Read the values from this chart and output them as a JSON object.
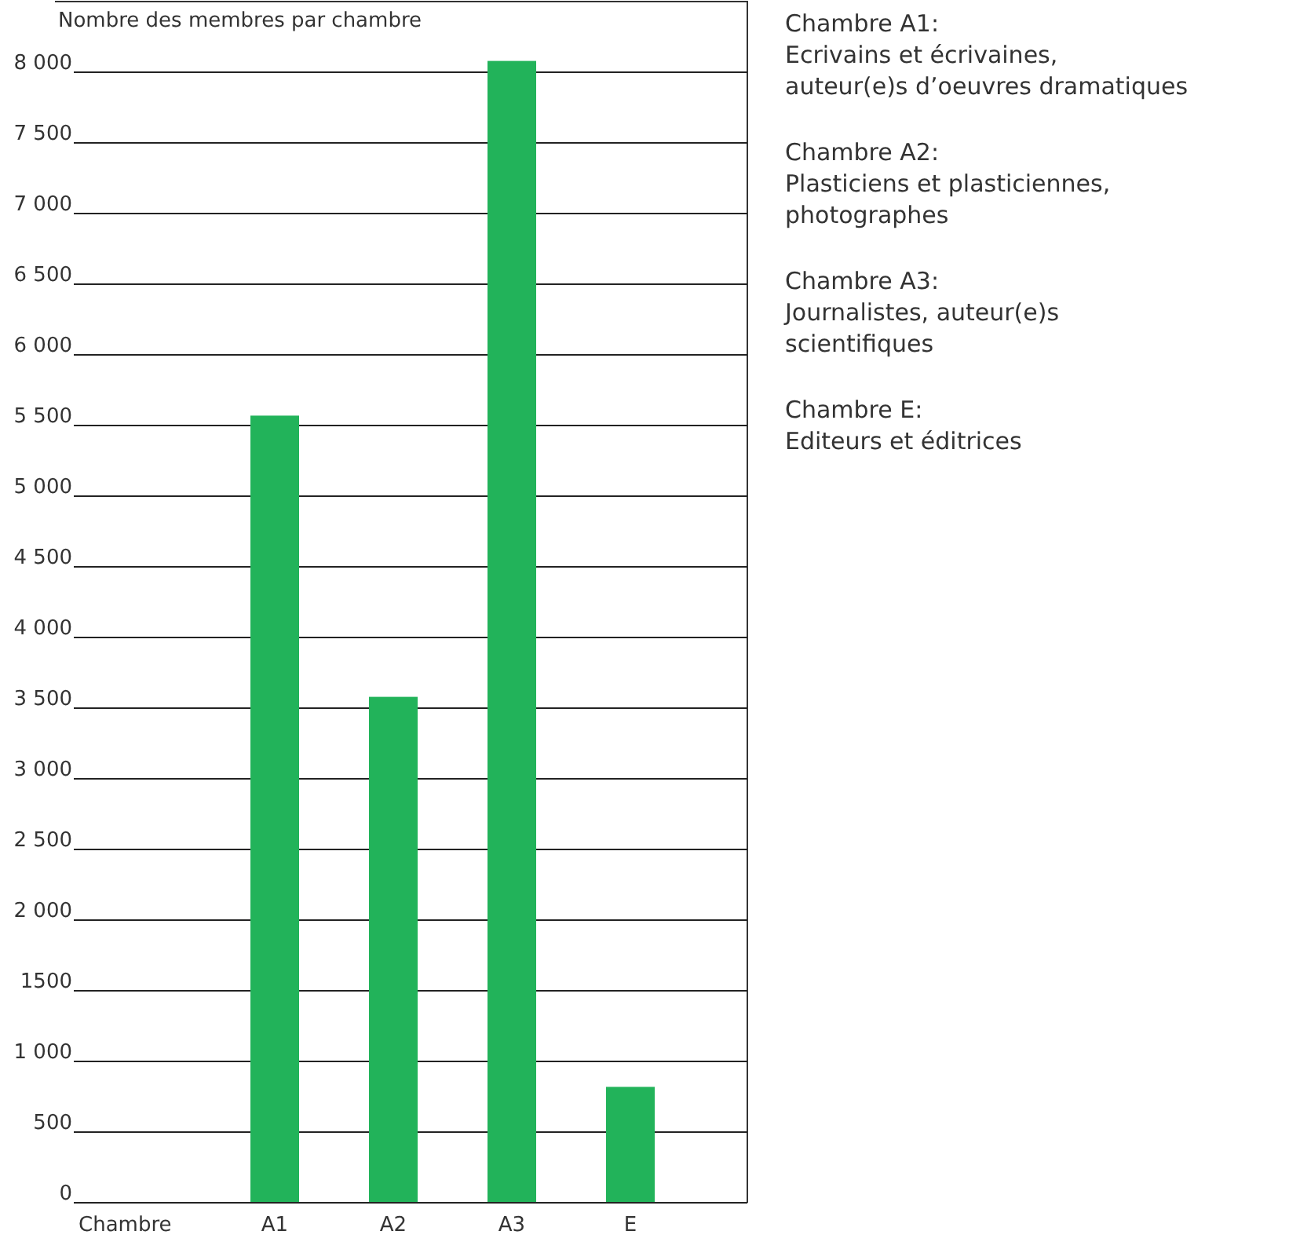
{
  "chart_data": {
    "type": "bar",
    "ylabel": "Nombre des membres par chambre",
    "xlabel": "Chambre",
    "categories": [
      "A1",
      "A2",
      "A3",
      "E"
    ],
    "values": [
      5570,
      3580,
      8080,
      820
    ],
    "color": "#22b35a",
    "ylim": [
      0,
      8500
    ],
    "yticks": [
      0,
      500,
      {
        "value": 1000,
        "label": "1 000"
      },
      1500,
      {
        "value": 2000,
        "label": "2 000"
      },
      {
        "value": 2500,
        "label": "2 500"
      },
      {
        "value": 3000,
        "label": "3 000"
      },
      {
        "value": 3500,
        "label": "3 500"
      },
      {
        "value": 4000,
        "label": "4 000"
      },
      {
        "value": 4500,
        "label": "4 500"
      },
      {
        "value": 5000,
        "label": "5 000"
      },
      {
        "value": 5500,
        "label": "5 500"
      },
      {
        "value": 6000,
        "label": "6 000"
      },
      {
        "value": 6500,
        "label": "6 500"
      },
      {
        "value": 7000,
        "label": "7 000"
      },
      {
        "value": 7500,
        "label": "7 500"
      },
      {
        "value": 8000,
        "label": "8 000"
      }
    ],
    "grid": "y",
    "annotations": [
      "Chambre A1:\nEcrivains et écrivaines,\nauteur(e)s d’oeuvres dramatiques",
      "Chambre A2:\nPlasticiens et plasticiennes,\nphotographes",
      "Chambre A3:\nJournalistes, auteur(e)s\nscientifiques",
      "Chambre E:\nEditeurs et éditrices"
    ]
  }
}
